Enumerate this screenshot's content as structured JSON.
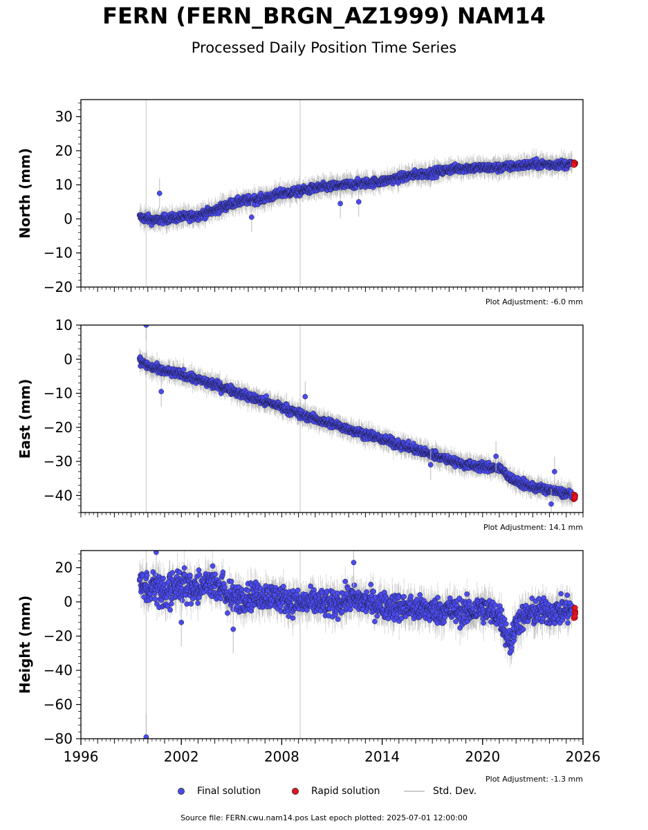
{
  "header": {
    "title": "FERN (FERN_BRGN_AZ1999) NAM14",
    "subtitle": "Processed Daily Position Time Series"
  },
  "legend": {
    "final_label": "Final solution",
    "rapid_label": "Rapid solution",
    "std_label": "Std. Dev."
  },
  "footer": {
    "source": "Source file: FERN.cwu.nam14.pos  Last epoch plotted: 2025-07-01 12:00:00"
  },
  "colors": {
    "final": "#4b4bf0",
    "rapid": "#e8141e",
    "std": "#bfbfbf",
    "marker_edge": "#1a1a3a"
  },
  "chart_data": [
    {
      "type": "scatter",
      "ylabel": "North (mm)",
      "ylim": [
        -20,
        35
      ],
      "xlim": [
        1996,
        2026
      ],
      "yticks": [
        30,
        20,
        10,
        0,
        -10,
        -20
      ],
      "adjustment": "Plot Adjustment: -6.0 mm",
      "show_xticklabels": false,
      "x": [
        1999.5,
        2000.0,
        2000.5,
        2001.0,
        2002.0,
        2003.0,
        2004.0,
        2005.0,
        2006.0,
        2007.0,
        2008.0,
        2009.0,
        2010.0,
        2011.0,
        2012.0,
        2013.0,
        2014.0,
        2015.0,
        2016.0,
        2017.0,
        2018.0,
        2019.0,
        2020.0,
        2021.0,
        2022.0,
        2023.0,
        2024.0,
        2025.0,
        2025.5
      ],
      "series": [
        {
          "name": "Final solution",
          "values": [
            0.5,
            0.0,
            -0.5,
            0.0,
            0.5,
            1.0,
            2.5,
            4.5,
            5.5,
            6.0,
            7.5,
            8.0,
            9.0,
            9.5,
            10.0,
            10.5,
            11.0,
            12.0,
            13.0,
            13.5,
            14.5,
            15.0,
            15.0,
            15.0,
            15.5,
            16.0,
            16.0,
            16.0,
            null
          ]
        },
        {
          "name": "Rapid solution",
          "values": [
            null,
            null,
            null,
            null,
            null,
            null,
            null,
            null,
            null,
            null,
            null,
            null,
            null,
            null,
            null,
            null,
            null,
            null,
            null,
            null,
            null,
            null,
            null,
            null,
            null,
            null,
            null,
            null,
            16.5
          ]
        }
      ],
      "outliers": [
        {
          "x": 2000.7,
          "y": 7.5
        },
        {
          "x": 2006.2,
          "y": 0.5
        },
        {
          "x": 2011.5,
          "y": 4.5
        },
        {
          "x": 2012.6,
          "y": 5.0
        }
      ]
    },
    {
      "type": "scatter",
      "ylabel": "East (mm)",
      "ylim": [
        -45,
        10
      ],
      "xlim": [
        1996,
        2026
      ],
      "yticks": [
        10,
        0,
        -10,
        -20,
        -30,
        -40
      ],
      "adjustment": "Plot Adjustment: 14.1 mm",
      "show_xticklabels": false,
      "x": [
        1999.5,
        2000.0,
        2000.5,
        2001.0,
        2002.0,
        2003.0,
        2004.0,
        2005.0,
        2006.0,
        2007.0,
        2008.0,
        2009.0,
        2010.0,
        2011.0,
        2012.0,
        2013.0,
        2014.0,
        2015.0,
        2016.0,
        2017.0,
        2018.0,
        2019.0,
        2020.0,
        2021.0,
        2022.0,
        2023.0,
        2024.0,
        2025.0,
        2025.5
      ],
      "series": [
        {
          "name": "Final solution",
          "values": [
            -0.5,
            -2.0,
            -3.0,
            -3.5,
            -4.5,
            -6.0,
            -7.5,
            -9.0,
            -11.0,
            -12.5,
            -14.0,
            -16.0,
            -17.5,
            -19.0,
            -20.5,
            -22.0,
            -23.5,
            -25.0,
            -26.5,
            -28.0,
            -29.5,
            -31.0,
            -31.5,
            -32.0,
            -36.0,
            -37.5,
            -38.5,
            -39.5,
            null
          ]
        },
        {
          "name": "Rapid solution",
          "values": [
            null,
            null,
            null,
            null,
            null,
            null,
            null,
            null,
            null,
            null,
            null,
            null,
            null,
            null,
            null,
            null,
            null,
            null,
            null,
            null,
            null,
            null,
            null,
            null,
            null,
            null,
            null,
            null,
            -40.5
          ]
        }
      ],
      "outliers": [
        {
          "x": 1999.9,
          "y": 10.0
        },
        {
          "x": 2000.8,
          "y": -9.5
        },
        {
          "x": 2009.4,
          "y": -11.0
        },
        {
          "x": 2016.9,
          "y": -31.0
        },
        {
          "x": 2020.8,
          "y": -28.5
        },
        {
          "x": 2024.3,
          "y": -33.0
        },
        {
          "x": 2024.1,
          "y": -42.5
        }
      ]
    },
    {
      "type": "scatter",
      "ylabel": "Height (mm)",
      "ylim": [
        -80,
        30
      ],
      "xlim": [
        1996,
        2026
      ],
      "yticks": [
        20,
        0,
        -20,
        -40,
        -60,
        -80
      ],
      "xticks": [
        1996,
        2002,
        2008,
        2014,
        2020,
        2026
      ],
      "xticklabels": [
        "1996",
        "2002",
        "2008",
        "2014",
        "2020",
        "2026"
      ],
      "adjustment": "Plot Adjustment: -1.3 mm",
      "show_xticklabels": true,
      "x": [
        1999.5,
        2000.0,
        2000.5,
        2001.0,
        2002.0,
        2003.0,
        2004.0,
        2005.0,
        2006.0,
        2007.0,
        2008.0,
        2009.0,
        2010.0,
        2011.0,
        2012.0,
        2013.0,
        2014.0,
        2015.0,
        2016.0,
        2017.0,
        2018.0,
        2019.0,
        2020.0,
        2021.0,
        2021.7,
        2022.0,
        2023.0,
        2024.0,
        2025.0,
        2025.5
      ],
      "series": [
        {
          "name": "Final solution",
          "values": [
            12,
            8,
            10,
            5,
            10,
            8,
            12,
            2,
            3,
            4,
            2,
            -1,
            0,
            -2,
            2,
            0,
            -2,
            -3,
            -4,
            -5,
            -5,
            -6,
            -4,
            -8,
            -25,
            -12,
            -6,
            -6,
            -5,
            null
          ]
        },
        {
          "name": "Rapid solution",
          "values": [
            null,
            null,
            null,
            null,
            null,
            null,
            null,
            null,
            null,
            null,
            null,
            null,
            null,
            null,
            null,
            null,
            null,
            null,
            null,
            null,
            null,
            null,
            null,
            null,
            null,
            null,
            null,
            null,
            null,
            -6
          ]
        }
      ],
      "outliers": [
        {
          "x": 1999.9,
          "y": -79.0
        },
        {
          "x": 2000.5,
          "y": 29.0
        },
        {
          "x": 2012.3,
          "y": 23.0
        },
        {
          "x": 2005.1,
          "y": -16.0
        },
        {
          "x": 2002.0,
          "y": -12.0
        }
      ]
    }
  ]
}
